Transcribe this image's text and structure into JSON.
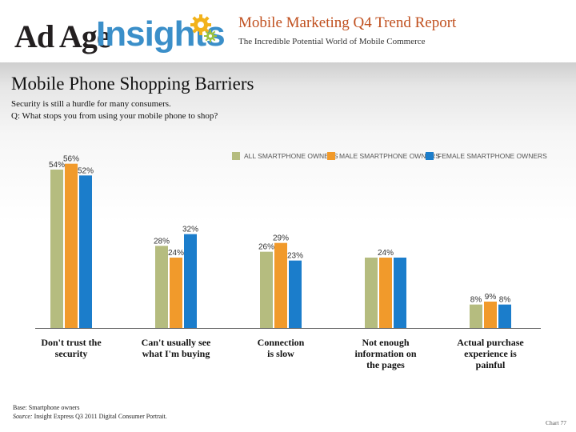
{
  "header": {
    "logo_adage": "Ad Age",
    "logo_insights": "Insights",
    "report_title": "Mobile Marketing Q4 Trend Report",
    "report_subtitle": "The Incredible Potential World of Mobile Commerce"
  },
  "slide": {
    "title": "Mobile Phone Shopping Barriers",
    "subtitle": "Security is still a hurdle for many consumers.",
    "question": "Q: What stops you from using your mobile phone to shop?"
  },
  "colors": {
    "all": "#b5bc7f",
    "male": "#f19a2b",
    "female": "#1b7dcb"
  },
  "chart_data": {
    "type": "bar",
    "title": "Mobile Phone Shopping Barriers",
    "categories": [
      "Don't trust the security",
      "Can't usually see what I'm buying",
      "Connection is slow",
      "Not enough information on the pages",
      "Actual purchase experience is painful"
    ],
    "category_lines": [
      [
        "Don't trust the",
        "security"
      ],
      [
        "Can't usually see",
        "what I'm buying"
      ],
      [
        "Connection",
        "is slow"
      ],
      [
        "Not enough",
        "information on",
        "the pages"
      ],
      [
        "Actual purchase",
        "experience is",
        "painful"
      ]
    ],
    "series": [
      {
        "name": "ALL SMARTPHONE OWNERS",
        "values": [
          54,
          28,
          26,
          24,
          8
        ],
        "labels": [
          "54%",
          "28%",
          "26%",
          "",
          "8%"
        ]
      },
      {
        "name": "MALE SMARTPHONE OWNERS",
        "values": [
          56,
          24,
          29,
          24,
          9
        ],
        "labels": [
          "56%",
          "24%",
          "29%",
          "24%",
          "9%"
        ]
      },
      {
        "name": "FEMALE SMARTPHONE OWNERS",
        "values": [
          52,
          32,
          23,
          24,
          8
        ],
        "labels": [
          "52%",
          "32%",
          "23%",
          "",
          "8%"
        ]
      }
    ],
    "ylim": [
      0,
      60
    ],
    "xlabel": "",
    "ylabel": "",
    "grid": false,
    "legend_position": "top-right"
  },
  "footer": {
    "base": "Base: Smartphone owners",
    "source_label": "Source:",
    "source_text": "Insight Express Q3 2011 Digital Consumer Portrait.",
    "chart_number": "Chart 77"
  }
}
